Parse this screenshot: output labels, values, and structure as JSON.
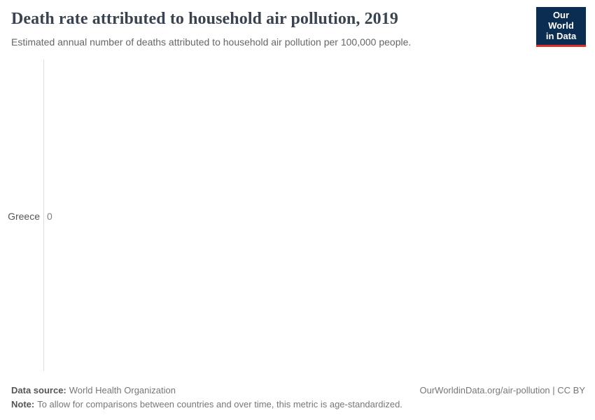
{
  "page": {
    "title": "Death rate attributed to household air pollution, 2019",
    "subtitle": "Estimated annual number of deaths attributed to household air pollution per 100,000 people."
  },
  "logo": {
    "line1": "Our World",
    "line2": "in Data"
  },
  "chart_data": {
    "type": "bar",
    "orientation": "horizontal",
    "title": "Death rate attributed to household air pollution, 2019",
    "subtitle": "Estimated annual number of deaths attributed to household air pollution per 100,000 people.",
    "categories": [
      "Greece"
    ],
    "values": [
      0
    ],
    "value_labels": [
      "0"
    ],
    "xlabel": "",
    "ylabel": "",
    "grid": false,
    "legend": false
  },
  "rows": [
    {
      "label": "Greece",
      "value_label": "0"
    }
  ],
  "footer": {
    "source_label": "Data source:",
    "source_text": "World Health Organization",
    "note_label": "Note:",
    "note_text": "To allow for comparisons between countries and over time, this metric is age-standardized.",
    "citation": "OurWorldinData.org/air-pollution | CC BY"
  },
  "colors": {
    "title": "#3a4450",
    "subtitle": "#666666",
    "axis_line": "#dddddd",
    "entity_label": "#555555",
    "value_label": "#808080",
    "footer_label": "#555555",
    "footer_text": "#777777",
    "logo_background": "#0c2d52",
    "logo_stripe": "#dc2f28",
    "bar": "#b13507"
  }
}
